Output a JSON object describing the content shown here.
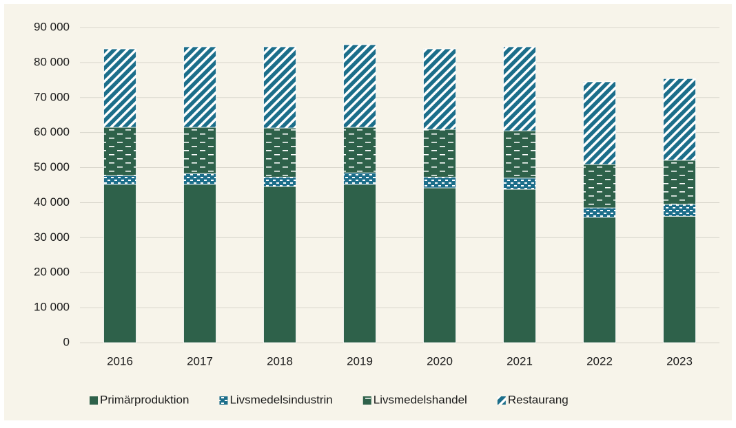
{
  "chart_data": {
    "type": "stacked_bar",
    "categories": [
      "2016",
      "2017",
      "2018",
      "2019",
      "2020",
      "2021",
      "2022",
      "2023"
    ],
    "series": [
      {
        "name": "Primärproduktion",
        "color": "#2e614a",
        "pattern": "solid",
        "values": [
          45200,
          45200,
          44600,
          45200,
          44200,
          43800,
          35800,
          36100
        ]
      },
      {
        "name": "Livsmedelsindustrin",
        "color": "#1c6e8a",
        "pattern": "dots",
        "values": [
          2500,
          3100,
          2700,
          3300,
          3100,
          3200,
          2700,
          3400
        ]
      },
      {
        "name": "Livsmedelshandel",
        "color": "#2e614a",
        "pattern": "dashes",
        "values": [
          13800,
          13200,
          14000,
          13000,
          13600,
          13500,
          12400,
          12600
        ]
      },
      {
        "name": "Restaurang",
        "color": "#1c6e8a",
        "pattern": "stripes",
        "values": [
          22400,
          23000,
          23200,
          23600,
          23000,
          24000,
          23600,
          23300
        ]
      }
    ],
    "ylim": [
      0,
      90000
    ],
    "yticks": [
      0,
      {
        "value": 10000,
        "label": "10 000"
      },
      {
        "value": 20000,
        "label": "20 000"
      },
      {
        "value": 30000,
        "label": "30 000"
      },
      {
        "value": 40000,
        "label": "40 000"
      },
      {
        "value": 50000,
        "label": "50 000"
      },
      {
        "value": 60000,
        "label": "60 000"
      },
      {
        "value": 70000,
        "label": "70 000"
      },
      {
        "value": 80000,
        "label": "80 000"
      },
      {
        "value": 90000,
        "label": "90 000"
      }
    ],
    "grid": true,
    "legend": "bottom"
  }
}
